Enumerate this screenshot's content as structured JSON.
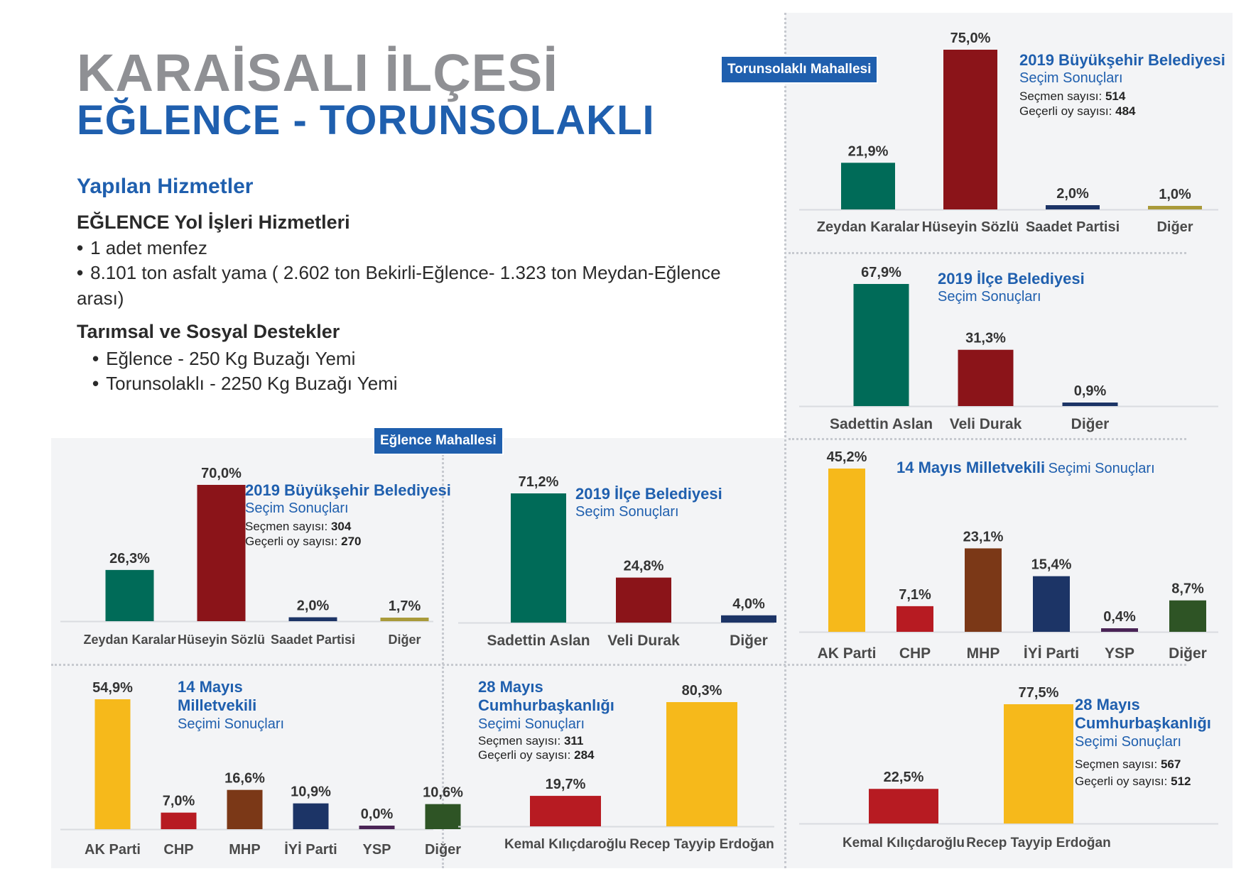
{
  "header": {
    "title_line1": "KARAİSALI İLÇESİ",
    "title_line2": "EĞLENCE - TORUNSOLAKLI"
  },
  "services": {
    "heading": "Yapılan Hizmetler",
    "section1_title": "EĞLENCE Yol İşleri Hizmetleri",
    "section1_items": [
      "1 adet menfez",
      "8.101 ton asfalt yama ( 2.602 ton Bekirli-Eğlence- 1.323 ton Meydan-Eğlence",
      "arası)"
    ],
    "section2_title": "Tarımsal ve Sosyal Destekler",
    "section2_items": [
      "Eğlence - 250 Kg Buzağı Yemi",
      "Torunsolaklı - 2250 Kg Buzağı Yemi"
    ],
    "bullet": "•"
  },
  "tags": {
    "torunsolakli": "Torunsolaklı Mahallesi",
    "eglence": "Eğlence Mahallesi"
  },
  "colors": {
    "zeydan": "#006b58",
    "huseyin": "#8b1419",
    "saadet": "#1c3466",
    "diger_yellow": "#a99a3a",
    "sadettin": "#006b58",
    "veli": "#8b1419",
    "diger_navy": "#1c3466",
    "ak": "#f6b91b",
    "chp": "#b71b22",
    "mhp": "#7b3817",
    "iyi": "#1c3466",
    "ysp": "#4a2456",
    "diger_green": "#2e5425",
    "kilicdaroglu": "#b71b22",
    "erdogan": "#f6b91b",
    "accent": "#1f5fae"
  },
  "chart_data": [
    {
      "id": "torunsolakli-bb-2019",
      "type": "bar",
      "title": "2019 Büyükşehir Belediyesi",
      "subtitle": "Seçim Sonuçları",
      "meta": [
        {
          "label": "Seçmen sayısı:",
          "value": "514"
        },
        {
          "label": "Geçerli oy sayısı:",
          "value": "484"
        }
      ],
      "categories": [
        "Zeydan Karalar",
        "Hüseyin Sözlü",
        "Saadet Partisi",
        "Diğer"
      ],
      "values": [
        21.9,
        75.0,
        2.0,
        1.0
      ],
      "labels": [
        "21,9%",
        "75,0%",
        "2,0%",
        "1,0%"
      ],
      "colors": [
        "#006b58",
        "#8b1419",
        "#1c3466",
        "#a99a3a"
      ],
      "ylim": [
        0,
        75
      ]
    },
    {
      "id": "torunsolakli-ilce-2019",
      "type": "bar",
      "title": "2019 İlçe Belediyesi",
      "subtitle": "Seçim Sonuçları",
      "meta": [],
      "categories": [
        "Sadettin Aslan",
        "Veli Durak",
        "Diğer"
      ],
      "values": [
        67.9,
        31.3,
        0.9
      ],
      "labels": [
        "67,9%",
        "31,3%",
        "0,9%"
      ],
      "colors": [
        "#006b58",
        "#8b1419",
        "#1c3466"
      ],
      "ylim": [
        0,
        67.9
      ]
    },
    {
      "id": "torunsolakli-mv-2023",
      "type": "bar",
      "title": "14 Mayıs Milletvekili",
      "subtitle": "Seçimi Sonuçları",
      "meta": [],
      "categories": [
        "AK Parti",
        "CHP",
        "MHP",
        "İYİ Parti",
        "YSP",
        "Diğer"
      ],
      "values": [
        45.2,
        7.1,
        23.1,
        15.4,
        0.4,
        8.7
      ],
      "labels": [
        "45,2%",
        "7,1%",
        "23,1%",
        "15,4%",
        "0,4%",
        "8,7%"
      ],
      "colors": [
        "#f6b91b",
        "#b71b22",
        "#7b3817",
        "#1c3466",
        "#4a2456",
        "#2e5425"
      ],
      "ylim": [
        0,
        45.2
      ]
    },
    {
      "id": "torunsolakli-cb-2023",
      "type": "bar",
      "title": "28 Mayıs Cumhurbaşkanlığı",
      "subtitle": "Seçimi Sonuçları",
      "meta": [
        {
          "label": "Seçmen sayısı:",
          "value": "567"
        },
        {
          "label": "Geçerli oy sayısı:",
          "value": "512"
        }
      ],
      "categories": [
        "Kemal Kılıçdaroğlu",
        "Recep Tayyip Erdoğan"
      ],
      "values": [
        22.5,
        77.5
      ],
      "labels": [
        "22,5%",
        "77,5%"
      ],
      "colors": [
        "#b71b22",
        "#f6b91b"
      ],
      "ylim": [
        0,
        77.5
      ]
    },
    {
      "id": "eglence-bb-2019",
      "type": "bar",
      "title": "2019 Büyükşehir Belediyesi",
      "subtitle": "Seçim Sonuçları",
      "meta": [
        {
          "label": "Seçmen sayısı:",
          "value": "304"
        },
        {
          "label": "Geçerli oy sayısı:",
          "value": "270"
        }
      ],
      "categories": [
        "Zeydan Karalar",
        "Hüseyin Sözlü",
        "Saadet Partisi",
        "Diğer"
      ],
      "values": [
        26.3,
        70.0,
        2.0,
        1.7
      ],
      "labels": [
        "26,3%",
        "70,0%",
        "2,0%",
        "1,7%"
      ],
      "colors": [
        "#006b58",
        "#8b1419",
        "#1c3466",
        "#a99a3a"
      ],
      "ylim": [
        0,
        70
      ]
    },
    {
      "id": "eglence-ilce-2019",
      "type": "bar",
      "title": "2019 İlçe Belediyesi",
      "subtitle": "Seçim Sonuçları",
      "meta": [],
      "categories": [
        "Sadettin Aslan",
        "Veli Durak",
        "Diğer"
      ],
      "values": [
        71.2,
        24.8,
        4.0
      ],
      "labels": [
        "71,2%",
        "24,8%",
        "4,0%"
      ],
      "colors": [
        "#006b58",
        "#8b1419",
        "#1c3466"
      ],
      "ylim": [
        0,
        71.2
      ]
    },
    {
      "id": "eglence-mv-2023",
      "type": "bar",
      "title": "14 Mayıs Milletvekili",
      "subtitle": "Seçimi Sonuçları",
      "meta": [],
      "categories": [
        "AK Parti",
        "CHP",
        "MHP",
        "İYİ Parti",
        "YSP",
        "Diğer"
      ],
      "values": [
        54.9,
        7.0,
        16.6,
        10.9,
        0.0,
        10.6
      ],
      "labels": [
        "54,9%",
        "7,0%",
        "16,6%",
        "10,9%",
        "0,0%",
        "10,6%"
      ],
      "colors": [
        "#f6b91b",
        "#b71b22",
        "#7b3817",
        "#1c3466",
        "#4a2456",
        "#2e5425"
      ],
      "ylim": [
        0,
        54.9
      ]
    },
    {
      "id": "eglence-cb-2023",
      "type": "bar",
      "title": "28 Mayıs Cumhurbaşkanlığı",
      "subtitle": "Seçimi Sonuçları",
      "meta": [
        {
          "label": "Seçmen sayısı:",
          "value": "311"
        },
        {
          "label": "Geçerli oy sayısı:",
          "value": "284"
        }
      ],
      "categories": [
        "Kemal Kılıçdaroğlu",
        "Recep Tayyip Erdoğan"
      ],
      "values": [
        19.7,
        80.3
      ],
      "labels": [
        "19,7%",
        "80,3%"
      ],
      "colors": [
        "#b71b22",
        "#f6b91b"
      ],
      "ylim": [
        0,
        80.3
      ]
    }
  ]
}
